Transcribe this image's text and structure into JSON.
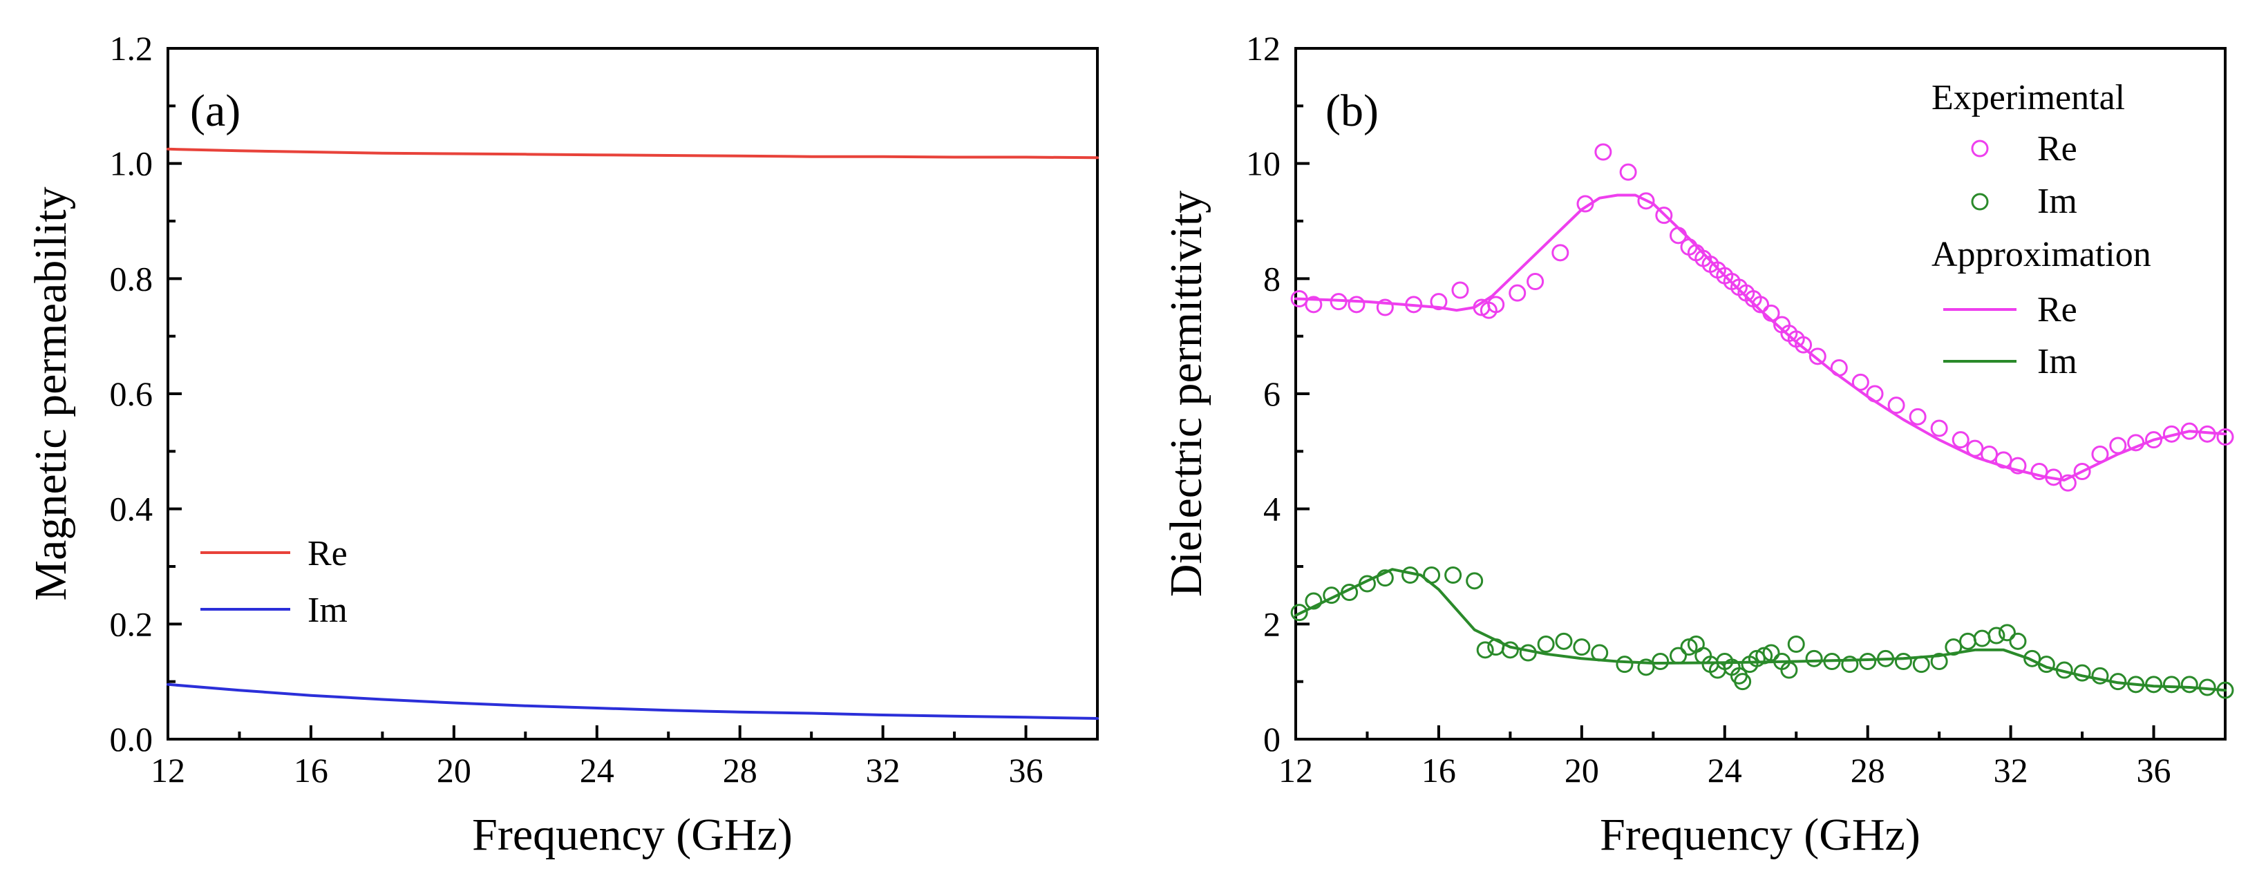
{
  "chart_data": [
    {
      "type": "line",
      "panel_label": "(a)",
      "xlabel": "Frequency (GHz)",
      "ylabel": "Magnetic permeability",
      "xlim": [
        12,
        38
      ],
      "ylim": [
        0.0,
        1.2
      ],
      "xticks": [
        "12",
        "16",
        "20",
        "24",
        "28",
        "32",
        "36"
      ],
      "yticks": [
        "0.0",
        "0.2",
        "0.4",
        "0.6",
        "0.8",
        "1.0",
        "1.2"
      ],
      "legend_position": "lower-left",
      "series": [
        {
          "name": "Re",
          "color": "#e8423a",
          "x": [
            12,
            14,
            16,
            18,
            20,
            22,
            24,
            26,
            28,
            30,
            32,
            34,
            36,
            38
          ],
          "y": [
            1.025,
            1.022,
            1.02,
            1.018,
            1.017,
            1.016,
            1.015,
            1.014,
            1.013,
            1.012,
            1.012,
            1.011,
            1.011,
            1.01
          ]
        },
        {
          "name": "Im",
          "color": "#2b2fd9",
          "x": [
            12,
            14,
            16,
            18,
            20,
            22,
            24,
            26,
            28,
            30,
            32,
            34,
            36,
            38
          ],
          "y": [
            0.095,
            0.085,
            0.076,
            0.069,
            0.063,
            0.058,
            0.054,
            0.05,
            0.047,
            0.045,
            0.042,
            0.04,
            0.038,
            0.036
          ]
        }
      ]
    },
    {
      "type": "scatter",
      "panel_label": "(b)",
      "xlabel": "Frequency (GHz)",
      "ylabel": "Dielectric permittivity",
      "xlim": [
        12,
        38
      ],
      "ylim": [
        0,
        12
      ],
      "xticks": [
        "12",
        "16",
        "20",
        "24",
        "28",
        "32",
        "36"
      ],
      "yticks": [
        "0",
        "2",
        "4",
        "6",
        "8",
        "10",
        "12"
      ],
      "legend_position": "top-right",
      "legend": {
        "experimental_title": "Experimental",
        "approximation_title": "Approximation",
        "re_label": "Re",
        "im_label": "Im"
      },
      "series": [
        {
          "name": "Re",
          "kind": "experimental",
          "color": "#ee3fee",
          "x": [
            12.1,
            12.5,
            13.2,
            13.7,
            14.5,
            15.3,
            16.0,
            16.6,
            17.2,
            17.4,
            17.6,
            18.2,
            18.7,
            19.4,
            20.1,
            20.6,
            21.3,
            21.8,
            22.3,
            22.7,
            23.0,
            23.2,
            23.4,
            23.6,
            23.8,
            24.0,
            24.2,
            24.4,
            24.6,
            24.8,
            25.0,
            25.3,
            25.6,
            25.8,
            26.0,
            26.2,
            26.6,
            27.2,
            27.8,
            28.2,
            28.8,
            29.4,
            30.0,
            30.6,
            31.0,
            31.4,
            31.8,
            32.2,
            32.8,
            33.2,
            33.6,
            34.0,
            34.5,
            35.0,
            35.5,
            36.0,
            36.5,
            37.0,
            37.5,
            38.0
          ],
          "y": [
            7.65,
            7.55,
            7.6,
            7.55,
            7.5,
            7.55,
            7.6,
            7.8,
            7.5,
            7.45,
            7.55,
            7.75,
            7.95,
            8.45,
            9.3,
            10.2,
            9.85,
            9.35,
            9.1,
            8.75,
            8.55,
            8.45,
            8.35,
            8.25,
            8.15,
            8.05,
            7.95,
            7.85,
            7.75,
            7.65,
            7.55,
            7.4,
            7.2,
            7.05,
            6.95,
            6.85,
            6.65,
            6.45,
            6.2,
            6.0,
            5.8,
            5.6,
            5.4,
            5.2,
            5.05,
            4.95,
            4.85,
            4.75,
            4.65,
            4.55,
            4.45,
            4.65,
            4.95,
            5.1,
            5.15,
            5.2,
            5.3,
            5.35,
            5.3,
            5.25
          ]
        },
        {
          "name": "Im",
          "kind": "experimental",
          "color": "#2a8a2a",
          "x": [
            12.1,
            12.5,
            13.0,
            13.5,
            14.0,
            14.5,
            15.2,
            15.8,
            16.4,
            17.0,
            17.3,
            17.6,
            18.0,
            18.5,
            19.0,
            19.5,
            20.0,
            20.5,
            21.2,
            21.8,
            22.2,
            22.7,
            23.0,
            23.2,
            23.4,
            23.6,
            23.8,
            24.0,
            24.2,
            24.4,
            24.5,
            24.7,
            24.9,
            25.1,
            25.3,
            25.6,
            25.8,
            26.0,
            26.5,
            27.0,
            27.5,
            28.0,
            28.5,
            29.0,
            29.5,
            30.0,
            30.4,
            30.8,
            31.2,
            31.6,
            31.9,
            32.2,
            32.6,
            33.0,
            33.5,
            34.0,
            34.5,
            35.0,
            35.5,
            36.0,
            36.5,
            37.0,
            37.5,
            38.0
          ],
          "y": [
            2.2,
            2.4,
            2.5,
            2.55,
            2.7,
            2.8,
            2.85,
            2.85,
            2.85,
            2.75,
            1.55,
            1.6,
            1.55,
            1.5,
            1.65,
            1.7,
            1.6,
            1.5,
            1.3,
            1.25,
            1.35,
            1.45,
            1.6,
            1.65,
            1.45,
            1.3,
            1.2,
            1.35,
            1.25,
            1.1,
            1.0,
            1.3,
            1.4,
            1.45,
            1.5,
            1.35,
            1.2,
            1.65,
            1.4,
            1.35,
            1.3,
            1.35,
            1.4,
            1.35,
            1.3,
            1.35,
            1.6,
            1.7,
            1.75,
            1.8,
            1.85,
            1.7,
            1.4,
            1.3,
            1.2,
            1.15,
            1.1,
            1.0,
            0.95,
            0.95,
            0.95,
            0.95,
            0.9,
            0.85
          ]
        },
        {
          "name": "Re",
          "kind": "approximation",
          "color": "#ee3fee",
          "x": [
            12,
            13,
            14,
            15,
            16,
            16.5,
            17,
            17.5,
            18,
            19,
            20,
            20.5,
            21,
            21.5,
            22,
            23,
            24,
            25,
            26,
            27,
            28,
            29,
            30,
            31,
            32,
            33,
            33.5,
            34,
            35,
            36,
            37,
            38
          ],
          "y": [
            7.65,
            7.63,
            7.6,
            7.55,
            7.5,
            7.45,
            7.5,
            7.7,
            8.0,
            8.6,
            9.2,
            9.4,
            9.45,
            9.45,
            9.3,
            8.7,
            8.05,
            7.45,
            6.9,
            6.4,
            5.95,
            5.55,
            5.2,
            4.9,
            4.7,
            4.55,
            4.5,
            4.65,
            4.95,
            5.2,
            5.35,
            5.3
          ]
        },
        {
          "name": "Im",
          "kind": "approximation",
          "color": "#2a8a2a",
          "x": [
            12,
            13,
            14,
            14.7,
            15.5,
            16,
            16.5,
            17,
            18,
            19,
            20,
            21,
            22,
            24,
            26,
            28,
            29,
            30,
            31,
            31.8,
            32.5,
            33,
            34,
            35,
            36,
            37,
            38
          ],
          "y": [
            2.15,
            2.45,
            2.75,
            2.95,
            2.85,
            2.6,
            2.25,
            1.9,
            1.6,
            1.48,
            1.4,
            1.35,
            1.32,
            1.33,
            1.35,
            1.38,
            1.4,
            1.45,
            1.55,
            1.55,
            1.4,
            1.25,
            1.1,
            0.98,
            0.92,
            0.9,
            0.85
          ]
        }
      ]
    }
  ]
}
